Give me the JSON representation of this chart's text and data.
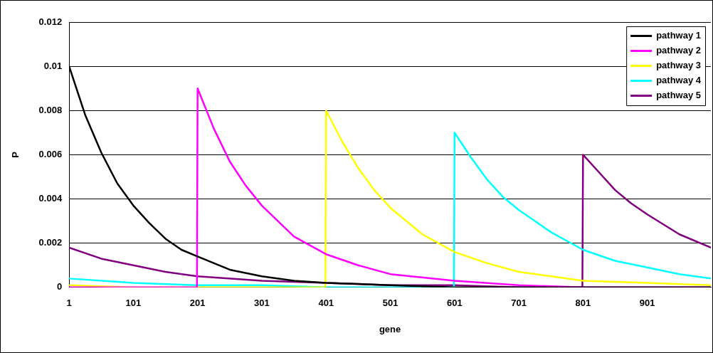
{
  "chart_data": {
    "type": "line",
    "xlabel": "gene",
    "ylabel": "P",
    "xlim": [
      1,
      1000
    ],
    "xticks": [
      1,
      101,
      201,
      301,
      401,
      501,
      601,
      701,
      801,
      901
    ],
    "ylim": [
      0,
      0.012
    ],
    "yticks": [
      0,
      0.002,
      0.004,
      0.006,
      0.008,
      0.01,
      0.012
    ],
    "grid": "y",
    "legend": "top right",
    "marker": "none",
    "line_style": "solid",
    "series": [
      {
        "name": "pathway 1",
        "color": "#000000",
        "x": [
          1,
          26,
          51,
          76,
          101,
          126,
          151,
          176,
          201,
          251,
          301,
          351,
          401,
          501,
          601,
          701,
          801,
          1000
        ],
        "values": [
          0.01,
          0.0078,
          0.0061,
          0.0047,
          0.0037,
          0.0029,
          0.0022,
          0.0017,
          0.0014,
          0.0008,
          0.0005,
          0.0003,
          0.0002,
          0.0001,
          0,
          0,
          0,
          0
        ]
      },
      {
        "name": "pathway 2",
        "color": "#ff00ff",
        "x": [
          1,
          200,
          201,
          226,
          251,
          276,
          301,
          351,
          401,
          451,
          501,
          601,
          701,
          801,
          901,
          1000
        ],
        "values": [
          0,
          0,
          0.009,
          0.0072,
          0.0057,
          0.0046,
          0.0037,
          0.0023,
          0.0015,
          0.001,
          0.0006,
          0.0003,
          0.0001,
          0,
          0,
          0
        ]
      },
      {
        "name": "pathway 3",
        "color": "#ffff00",
        "x": [
          1,
          101,
          201,
          301,
          400,
          401,
          426,
          451,
          476,
          501,
          551,
          601,
          651,
          701,
          801,
          901,
          1000
        ],
        "values": [
          0.0001,
          0,
          0,
          0,
          0,
          0.008,
          0.0066,
          0.0054,
          0.0044,
          0.0036,
          0.0024,
          0.0016,
          0.0011,
          0.0007,
          0.0003,
          0.0002,
          0.0001
        ]
      },
      {
        "name": "pathway 4",
        "color": "#00ffff",
        "x": [
          1,
          101,
          201,
          301,
          401,
          501,
          600,
          601,
          626,
          651,
          676,
          701,
          751,
          801,
          851,
          901,
          951,
          1000
        ],
        "values": [
          0.0004,
          0.0002,
          0.0001,
          0.0001,
          0,
          0,
          0,
          0.007,
          0.0059,
          0.0049,
          0.0041,
          0.0035,
          0.0025,
          0.0017,
          0.0012,
          0.0009,
          0.0006,
          0.0004
        ]
      },
      {
        "name": "pathway 5",
        "color": "#800080",
        "x": [
          1,
          51,
          101,
          151,
          201,
          301,
          401,
          501,
          601,
          701,
          800,
          801,
          826,
          851,
          876,
          901,
          951,
          1000
        ],
        "values": [
          0.0018,
          0.0013,
          0.001,
          0.0007,
          0.0005,
          0.0003,
          0.0002,
          0.0001,
          0.0001,
          0,
          0,
          0.006,
          0.0052,
          0.0044,
          0.0038,
          0.0033,
          0.0024,
          0.0018
        ]
      }
    ]
  }
}
